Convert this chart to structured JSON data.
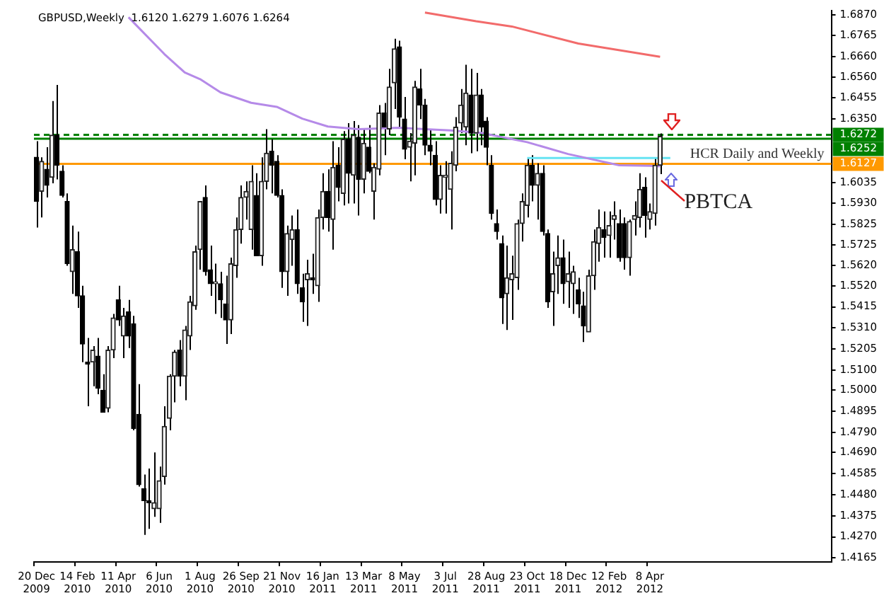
{
  "chart_data": {
    "type": "candlestick",
    "title": "GBPUSD,Weekly  1.6120 1.6279 1.6076 1.6264",
    "categories": [
      "20 Dec 2009",
      null,
      null,
      null,
      null,
      null,
      null,
      null,
      "14 Feb 2010",
      null,
      null,
      null,
      null,
      null,
      null,
      null,
      "11 Apr 2010",
      null,
      null,
      null,
      null,
      null,
      null,
      null,
      "6 Jun 2010",
      null,
      null,
      null,
      null,
      null,
      null,
      null,
      "1 Aug 2010",
      null,
      null,
      null,
      null,
      null,
      null,
      null,
      "26 Sep 2010",
      null,
      null,
      null,
      null,
      null,
      null,
      null,
      "21 Nov 2010",
      null,
      null,
      null,
      null,
      null,
      null,
      null,
      "16 Jan 2011",
      null,
      null,
      null,
      null,
      null,
      null,
      null,
      "13 Mar 2011",
      null,
      null,
      null,
      null,
      null,
      null,
      null,
      "8 May 2011",
      null,
      null,
      null,
      null,
      null,
      null,
      null,
      "3 Jul 2011",
      null,
      null,
      null,
      null,
      null,
      null,
      null,
      "28 Aug 2011",
      null,
      null,
      null,
      null,
      null,
      null,
      null,
      "23 Oct 2011",
      null,
      null,
      null,
      null,
      null,
      null,
      null,
      "18 Dec 2011",
      null,
      null,
      null,
      null,
      null,
      null,
      null,
      "12 Feb 2012",
      null,
      null,
      null,
      null,
      null,
      null,
      null,
      "8 Apr 2012",
      null,
      null,
      null,
      null,
      null,
      null,
      null,
      null,
      null,
      null,
      null,
      null,
      null,
      null,
      null,
      null,
      null,
      null,
      null,
      null,
      null,
      null,
      null,
      null,
      null,
      null,
      null,
      null,
      null,
      null,
      null,
      null,
      null,
      null,
      null
    ],
    "ohlc": [
      [
        1.616,
        1.624,
        1.581,
        1.594
      ],
      [
        1.599,
        1.616,
        1.586,
        1.614
      ],
      [
        1.61,
        1.621,
        1.596,
        1.602
      ],
      [
        1.606,
        1.644,
        1.603,
        1.627
      ],
      [
        1.627,
        1.652,
        1.605,
        1.612
      ],
      [
        1.609,
        1.612,
        1.596,
        1.597
      ],
      [
        1.594,
        1.598,
        1.562,
        1.563
      ],
      [
        1.559,
        1.582,
        1.548,
        1.57
      ],
      [
        1.569,
        1.579,
        1.541,
        1.547
      ],
      [
        1.547,
        1.552,
        1.514,
        1.523
      ],
      [
        1.514,
        1.526,
        1.492,
        1.513
      ],
      [
        1.514,
        1.522,
        1.502,
        1.52
      ],
      [
        1.517,
        1.526,
        1.498,
        1.501
      ],
      [
        1.5,
        1.508,
        1.489,
        1.489
      ],
      [
        1.491,
        1.522,
        1.489,
        1.52
      ],
      [
        1.52,
        1.538,
        1.516,
        1.536
      ],
      [
        1.545,
        1.552,
        1.532,
        1.535
      ],
      [
        1.527,
        1.541,
        1.516,
        1.537
      ],
      [
        1.539,
        1.545,
        1.521,
        1.527
      ],
      [
        1.533,
        1.537,
        1.48,
        1.481
      ],
      [
        1.488,
        1.503,
        1.452,
        1.453
      ],
      [
        1.451,
        1.458,
        1.428,
        1.445
      ],
      [
        1.445,
        1.461,
        1.431,
        1.444
      ],
      [
        1.441,
        1.469,
        1.437,
        1.444
      ],
      [
        1.441,
        1.462,
        1.434,
        1.455
      ],
      [
        1.457,
        1.492,
        1.453,
        1.482
      ],
      [
        1.486,
        1.508,
        1.48,
        1.507
      ],
      [
        1.507,
        1.52,
        1.494,
        1.519
      ],
      [
        1.52,
        1.525,
        1.502,
        1.507
      ],
      [
        1.507,
        1.532,
        1.495,
        1.53
      ],
      [
        1.527,
        1.547,
        1.52,
        1.544
      ],
      [
        1.542,
        1.572,
        1.54,
        1.569
      ],
      [
        1.57,
        1.594,
        1.56,
        1.594
      ],
      [
        1.596,
        1.602,
        1.557,
        1.559
      ],
      [
        1.56,
        1.572,
        1.547,
        1.553
      ],
      [
        1.553,
        1.563,
        1.538,
        1.554
      ],
      [
        1.553,
        1.559,
        1.536,
        1.545
      ],
      [
        1.543,
        1.557,
        1.523,
        1.535
      ],
      [
        1.535,
        1.566,
        1.528,
        1.563
      ],
      [
        1.562,
        1.586,
        1.556,
        1.58
      ],
      [
        1.58,
        1.602,
        1.573,
        1.596
      ],
      [
        1.596,
        1.604,
        1.585,
        1.599
      ],
      [
        1.58,
        1.612,
        1.57,
        1.604
      ],
      [
        1.597,
        1.608,
        1.567,
        1.567
      ],
      [
        1.567,
        1.616,
        1.562,
        1.604
      ],
      [
        1.604,
        1.63,
        1.6,
        1.618
      ],
      [
        1.619,
        1.625,
        1.598,
        1.612
      ],
      [
        1.614,
        1.617,
        1.596,
        1.597
      ],
      [
        1.597,
        1.6,
        1.551,
        1.559
      ],
      [
        1.559,
        1.582,
        1.547,
        1.578
      ],
      [
        1.575,
        1.587,
        1.562,
        1.58
      ],
      [
        1.58,
        1.59,
        1.548,
        1.553
      ],
      [
        1.551,
        1.558,
        1.534,
        1.544
      ],
      [
        1.555,
        1.565,
        1.532,
        1.558
      ],
      [
        1.556,
        1.568,
        1.548,
        1.555
      ],
      [
        1.552,
        1.59,
        1.544,
        1.586
      ],
      [
        1.586,
        1.608,
        1.58,
        1.599
      ],
      [
        1.599,
        1.61,
        1.579,
        1.586
      ],
      [
        1.585,
        1.624,
        1.57,
        1.611
      ],
      [
        1.612,
        1.621,
        1.594,
        1.601
      ],
      [
        1.598,
        1.629,
        1.592,
        1.625
      ],
      [
        1.625,
        1.633,
        1.593,
        1.608
      ],
      [
        1.607,
        1.634,
        1.593,
        1.627
      ],
      [
        1.626,
        1.632,
        1.587,
        1.605
      ],
      [
        1.605,
        1.63,
        1.598,
        1.623
      ],
      [
        1.621,
        1.632,
        1.608,
        1.609
      ],
      [
        1.599,
        1.613,
        1.585,
        1.611
      ],
      [
        1.61,
        1.642,
        1.607,
        1.638
      ],
      [
        1.638,
        1.643,
        1.617,
        1.631
      ],
      [
        1.63,
        1.66,
        1.627,
        1.651
      ],
      [
        1.653,
        1.675,
        1.64,
        1.67
      ],
      [
        1.671,
        1.674,
        1.631,
        1.636
      ],
      [
        1.635,
        1.646,
        1.615,
        1.62
      ],
      [
        1.621,
        1.628,
        1.604,
        1.624
      ],
      [
        1.623,
        1.654,
        1.607,
        1.651
      ],
      [
        1.65,
        1.66,
        1.635,
        1.642
      ],
      [
        1.642,
        1.645,
        1.617,
        1.622
      ],
      [
        1.622,
        1.63,
        1.612,
        1.619
      ],
      [
        1.617,
        1.624,
        1.592,
        1.595
      ],
      [
        1.595,
        1.612,
        1.588,
        1.607
      ],
      [
        1.606,
        1.614,
        1.588,
        1.607
      ],
      [
        1.6,
        1.619,
        1.58,
        1.613
      ],
      [
        1.612,
        1.636,
        1.609,
        1.631
      ],
      [
        1.633,
        1.65,
        1.628,
        1.642
      ],
      [
        1.631,
        1.662,
        1.622,
        1.648
      ],
      [
        1.647,
        1.66,
        1.618,
        1.628
      ],
      [
        1.628,
        1.658,
        1.619,
        1.647
      ],
      [
        1.647,
        1.65,
        1.622,
        1.631
      ],
      [
        1.634,
        1.636,
        1.612,
        1.621
      ],
      [
        1.612,
        1.617,
        1.585,
        1.588
      ],
      [
        1.583,
        1.59,
        1.575,
        1.579
      ],
      [
        1.573,
        1.577,
        1.533,
        1.546
      ],
      [
        1.548,
        1.572,
        1.53,
        1.556
      ],
      [
        1.555,
        1.567,
        1.535,
        1.558
      ],
      [
        1.556,
        1.585,
        1.55,
        1.583
      ],
      [
        1.583,
        1.598,
        1.574,
        1.594
      ],
      [
        1.592,
        1.616,
        1.586,
        1.612
      ],
      [
        1.612,
        1.617,
        1.594,
        1.602
      ],
      [
        1.602,
        1.613,
        1.585,
        1.608
      ],
      [
        1.608,
        1.612,
        1.577,
        1.579
      ],
      [
        1.578,
        1.58,
        1.541,
        1.544
      ],
      [
        1.549,
        1.569,
        1.532,
        1.558
      ],
      [
        1.562,
        1.577,
        1.548,
        1.566
      ],
      [
        1.566,
        1.575,
        1.543,
        1.553
      ],
      [
        1.554,
        1.569,
        1.541,
        1.558
      ],
      [
        1.553,
        1.562,
        1.538,
        1.559
      ],
      [
        1.55,
        1.556,
        1.536,
        1.543
      ],
      [
        1.542,
        1.549,
        1.524,
        1.532
      ],
      [
        1.529,
        1.56,
        1.529,
        1.557
      ],
      [
        1.557,
        1.58,
        1.55,
        1.574
      ],
      [
        1.573,
        1.59,
        1.564,
        1.581
      ],
      [
        1.58,
        1.589,
        1.566,
        1.576
      ],
      [
        1.577,
        1.589,
        1.566,
        1.582
      ],
      [
        1.585,
        1.594,
        1.575,
        1.587
      ],
      [
        1.583,
        1.59,
        1.564,
        1.566
      ],
      [
        1.583,
        1.586,
        1.56,
        1.566
      ],
      [
        1.566,
        1.585,
        1.557,
        1.584
      ],
      [
        1.585,
        1.594,
        1.577,
        1.587
      ],
      [
        1.586,
        1.608,
        1.581,
        1.6
      ],
      [
        1.601,
        1.606,
        1.576,
        1.587
      ],
      [
        1.585,
        1.593,
        1.58,
        1.589
      ],
      [
        1.588,
        1.616,
        1.582,
        1.612
      ],
      [
        1.612,
        1.6279,
        1.6076,
        1.6264
      ],
      null,
      null,
      null,
      null,
      null,
      null,
      null,
      null,
      null,
      null,
      null,
      null,
      null,
      null,
      null,
      null,
      null,
      null,
      null,
      null,
      null,
      null,
      null,
      null,
      null,
      null,
      null,
      null,
      null,
      null,
      null,
      null,
      null
    ],
    "series": [
      {
        "type": "line",
        "color": "#b58ae8",
        "values": [
          null,
          null,
          null,
          null,
          null,
          null,
          null,
          null,
          null,
          null,
          null,
          null,
          null,
          null,
          null,
          null,
          null,
          null,
          1.6857,
          null,
          null,
          null,
          null,
          null,
          null,
          1.6674,
          null,
          null,
          null,
          1.6582,
          null,
          null,
          1.6549,
          null,
          null,
          null,
          1.6483,
          null,
          null,
          null,
          null,
          null,
          1.6431,
          null,
          null,
          null,
          null,
          1.6411,
          null,
          null,
          null,
          null,
          1.6352,
          null,
          null,
          null,
          null,
          1.6313,
          null,
          null,
          null,
          null,
          null,
          1.63,
          null,
          null,
          null,
          null,
          null,
          null,
          null,
          1.6307,
          null,
          null,
          null,
          null,
          1.63,
          null,
          null,
          null,
          null,
          1.6294,
          null,
          null,
          null,
          null,
          null,
          1.6281,
          null,
          null,
          null,
          null,
          null,
          null,
          null,
          null,
          1.6235,
          null,
          null,
          null,
          null,
          null,
          null,
          null,
          1.6176,
          null,
          null,
          null,
          null,
          null,
          null,
          null,
          null,
          null,
          1.612,
          null,
          null,
          null,
          null,
          null,
          1.6117,
          null,
          1.6115,
          null,
          null,
          null,
          null,
          null,
          null,
          null,
          null,
          null,
          null,
          null,
          null,
          null,
          null,
          null,
          null,
          null,
          null,
          null,
          null,
          null,
          null,
          null,
          null,
          null,
          null,
          null,
          null,
          null,
          null,
          null,
          null,
          null
        ]
      },
      {
        "type": "line",
        "color": "#f26b6b",
        "values": [
          null,
          null,
          null,
          null,
          null,
          null,
          null,
          null,
          null,
          null,
          null,
          null,
          null,
          null,
          null,
          null,
          null,
          null,
          null,
          null,
          null,
          null,
          null,
          null,
          null,
          null,
          null,
          null,
          null,
          null,
          null,
          null,
          null,
          null,
          null,
          null,
          null,
          null,
          null,
          null,
          null,
          null,
          null,
          null,
          null,
          null,
          null,
          null,
          null,
          null,
          null,
          null,
          null,
          null,
          null,
          null,
          null,
          null,
          null,
          null,
          null,
          null,
          null,
          null,
          null,
          null,
          null,
          null,
          null,
          null,
          null,
          null,
          null,
          null,
          null,
          null,
          1.688,
          null,
          null,
          null,
          null,
          null,
          null,
          null,
          null,
          null,
          1.6837,
          null,
          null,
          null,
          null,
          null,
          null,
          1.6811,
          null,
          null,
          null,
          null,
          null,
          null,
          null,
          null,
          null,
          null,
          null,
          null,
          1.6726,
          null,
          null,
          null,
          null,
          null,
          null,
          null,
          null,
          null,
          null,
          null,
          null,
          null,
          null,
          null,
          1.666,
          null,
          null,
          null,
          null,
          null,
          null,
          null,
          null,
          null,
          null,
          null,
          null,
          null,
          null,
          null,
          null,
          null,
          null,
          null,
          null,
          null,
          null,
          null,
          null,
          null,
          null,
          null,
          null,
          null,
          null,
          null,
          null,
          null
        ]
      },
      {
        "type": "line",
        "color": "#66e3f2",
        "values": [
          null,
          null,
          null,
          null,
          null,
          null,
          null,
          null,
          null,
          null,
          null,
          null,
          null,
          null,
          null,
          null,
          null,
          null,
          null,
          null,
          null,
          null,
          null,
          null,
          null,
          null,
          null,
          null,
          null,
          null,
          null,
          null,
          null,
          null,
          null,
          null,
          null,
          null,
          null,
          null,
          null,
          null,
          null,
          null,
          null,
          null,
          null,
          null,
          null,
          null,
          null,
          null,
          null,
          null,
          null,
          null,
          null,
          null,
          null,
          null,
          null,
          null,
          null,
          null,
          null,
          null,
          null,
          null,
          null,
          null,
          null,
          null,
          null,
          null,
          null,
          null,
          null,
          null,
          null,
          null,
          null,
          null,
          null,
          null,
          null,
          null,
          null,
          null,
          null,
          null,
          null,
          null,
          null,
          null,
          null,
          null,
          1.6156,
          1.6156,
          1.6156,
          1.6156,
          1.6156,
          1.6156,
          1.6156,
          1.6156,
          1.6156,
          1.6156,
          1.6156,
          1.6156,
          1.6156,
          1.6156,
          1.6156,
          1.6156,
          1.6156,
          1.6156,
          1.6156,
          1.6156,
          1.6156,
          1.6156,
          1.6156,
          1.6156,
          1.6156,
          1.6156,
          1.6156,
          1.6156,
          1.6156,
          null,
          null,
          null,
          null,
          null,
          null,
          null,
          null,
          null,
          null,
          null,
          null,
          null,
          null,
          null,
          null,
          null,
          null,
          null,
          null,
          null,
          null,
          null,
          null,
          null,
          null,
          null,
          null,
          null,
          null,
          null
        ]
      }
    ],
    "ylim": [
      1.4145,
      1.689
    ],
    "yticks": [
      {
        "value": 1.687,
        "label": "1.6870"
      },
      1.6765,
      {
        "value": 1.666,
        "label": "1.6660"
      },
      {
        "value": 1.656,
        "label": "1.6560"
      },
      1.6455,
      {
        "value": 1.635,
        "label": "1.6350"
      },
      1.6035,
      {
        "value": 1.593,
        "label": "1.5930"
      },
      1.5825,
      1.5725,
      {
        "value": 1.562,
        "label": "1.5620"
      },
      {
        "value": 1.552,
        "label": "1.5520"
      },
      1.5415,
      {
        "value": 1.531,
        "label": "1.5310"
      },
      1.5205,
      {
        "value": 1.51,
        "label": "1.5100"
      },
      {
        "value": 1.5,
        "label": "1.5000"
      },
      1.4895,
      {
        "value": 1.479,
        "label": "1.4790"
      },
      {
        "value": 1.469,
        "label": "1.4690"
      },
      1.4585,
      {
        "value": 1.448,
        "label": "1.4480"
      },
      1.4375,
      {
        "value": 1.427,
        "label": "1.4270"
      },
      1.4165
    ],
    "ref_lines": [
      {
        "axis": "y",
        "value": 1.6272,
        "label": "1.6272",
        "color": "#008000",
        "line_style": "dashed"
      },
      {
        "axis": "y",
        "value": 1.6252,
        "label": "1.6252",
        "color": "#008000"
      },
      {
        "axis": "y",
        "value": 1.6127,
        "label": "1.6127",
        "color": "#ff9900"
      }
    ],
    "annotations": [
      {
        "text": "HCR Daily and Weekly",
        "y": 1.6127
      },
      "PBTCA"
    ]
  }
}
